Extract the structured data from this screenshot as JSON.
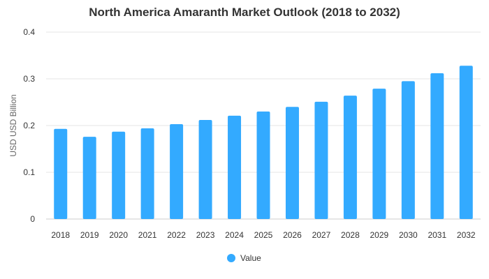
{
  "chart_data": {
    "type": "bar",
    "title": "North America Amaranth Market Outlook (2018 to 2032)",
    "xlabel": "",
    "ylabel": "USD USD Billion",
    "ylim": [
      0,
      0.4
    ],
    "yticks": [
      "0",
      "0.1",
      "0.2",
      "0.3",
      "0.4"
    ],
    "categories": [
      "2018",
      "2019",
      "2020",
      "2021",
      "2022",
      "2023",
      "2024",
      "2025",
      "2026",
      "2027",
      "2028",
      "2029",
      "2030",
      "2031",
      "2032"
    ],
    "series": [
      {
        "name": "Value",
        "color": "#33aaff",
        "values": [
          0.193,
          0.176,
          0.187,
          0.194,
          0.203,
          0.212,
          0.221,
          0.23,
          0.24,
          0.251,
          0.264,
          0.279,
          0.295,
          0.312,
          0.328
        ]
      }
    ],
    "gridlines": true,
    "legend_position": "bottom-center"
  }
}
